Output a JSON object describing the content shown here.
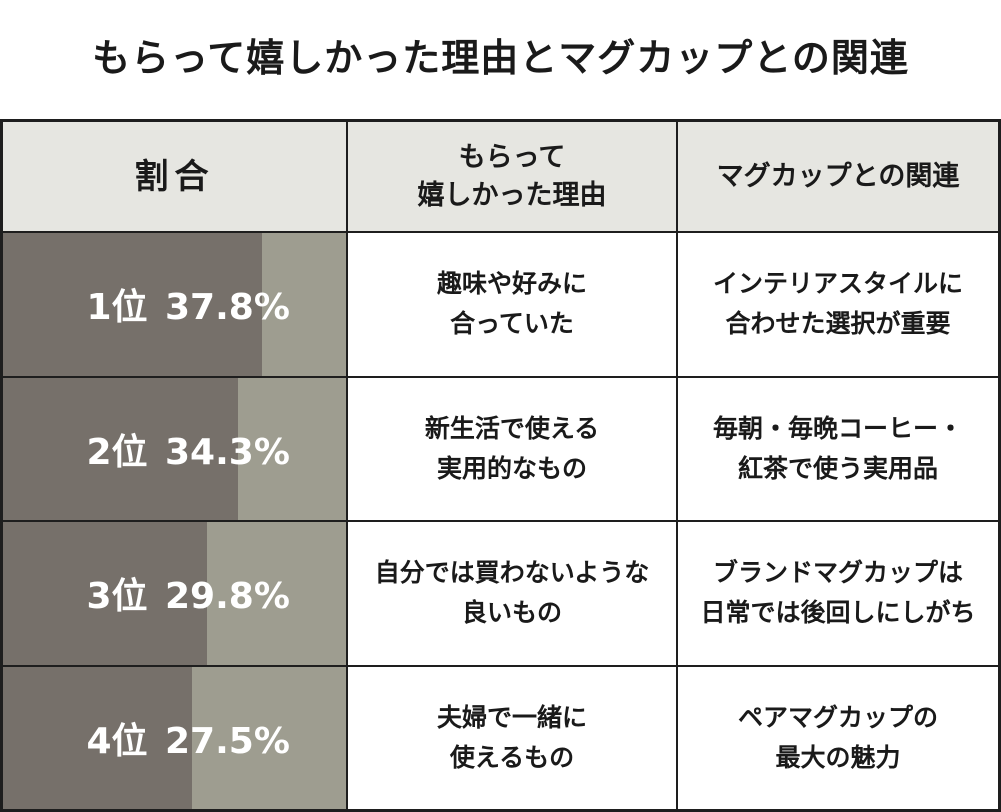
{
  "title": "もらって嬉しかった理由とマグカップとの関連",
  "headers": {
    "rate": "割合",
    "reason_line1": "もらって",
    "reason_line2": "嬉しかった理由",
    "relation": "マグカップとの関連"
  },
  "colors": {
    "bar_fill": "#76706a",
    "bar_track": "#9e9d90",
    "header_bg": "#e6e6e1"
  },
  "rows": [
    {
      "rank": "1位",
      "percent": "37.8%",
      "value": 37.8,
      "reason": [
        "趣味や好みに",
        "合っていた"
      ],
      "relation": [
        "インテリアスタイルに",
        "合わせた選択が重要"
      ]
    },
    {
      "rank": "2位",
      "percent": "34.3%",
      "value": 34.3,
      "reason": [
        "新生活で使える",
        "実用的なもの"
      ],
      "relation": [
        "毎朝・毎晩コーヒー・",
        "紅茶で使う実用品"
      ]
    },
    {
      "rank": "3位",
      "percent": "29.8%",
      "value": 29.8,
      "reason": [
        "自分では買わないような",
        "良いもの"
      ],
      "relation": [
        "ブランドマグカップは",
        "日常では後回しにしがち"
      ]
    },
    {
      "rank": "4位",
      "percent": "27.5%",
      "value": 27.5,
      "reason": [
        "夫婦で一緒に",
        "使えるもの"
      ],
      "relation": [
        "ペアマグカップの",
        "最大の魅力"
      ]
    }
  ]
}
